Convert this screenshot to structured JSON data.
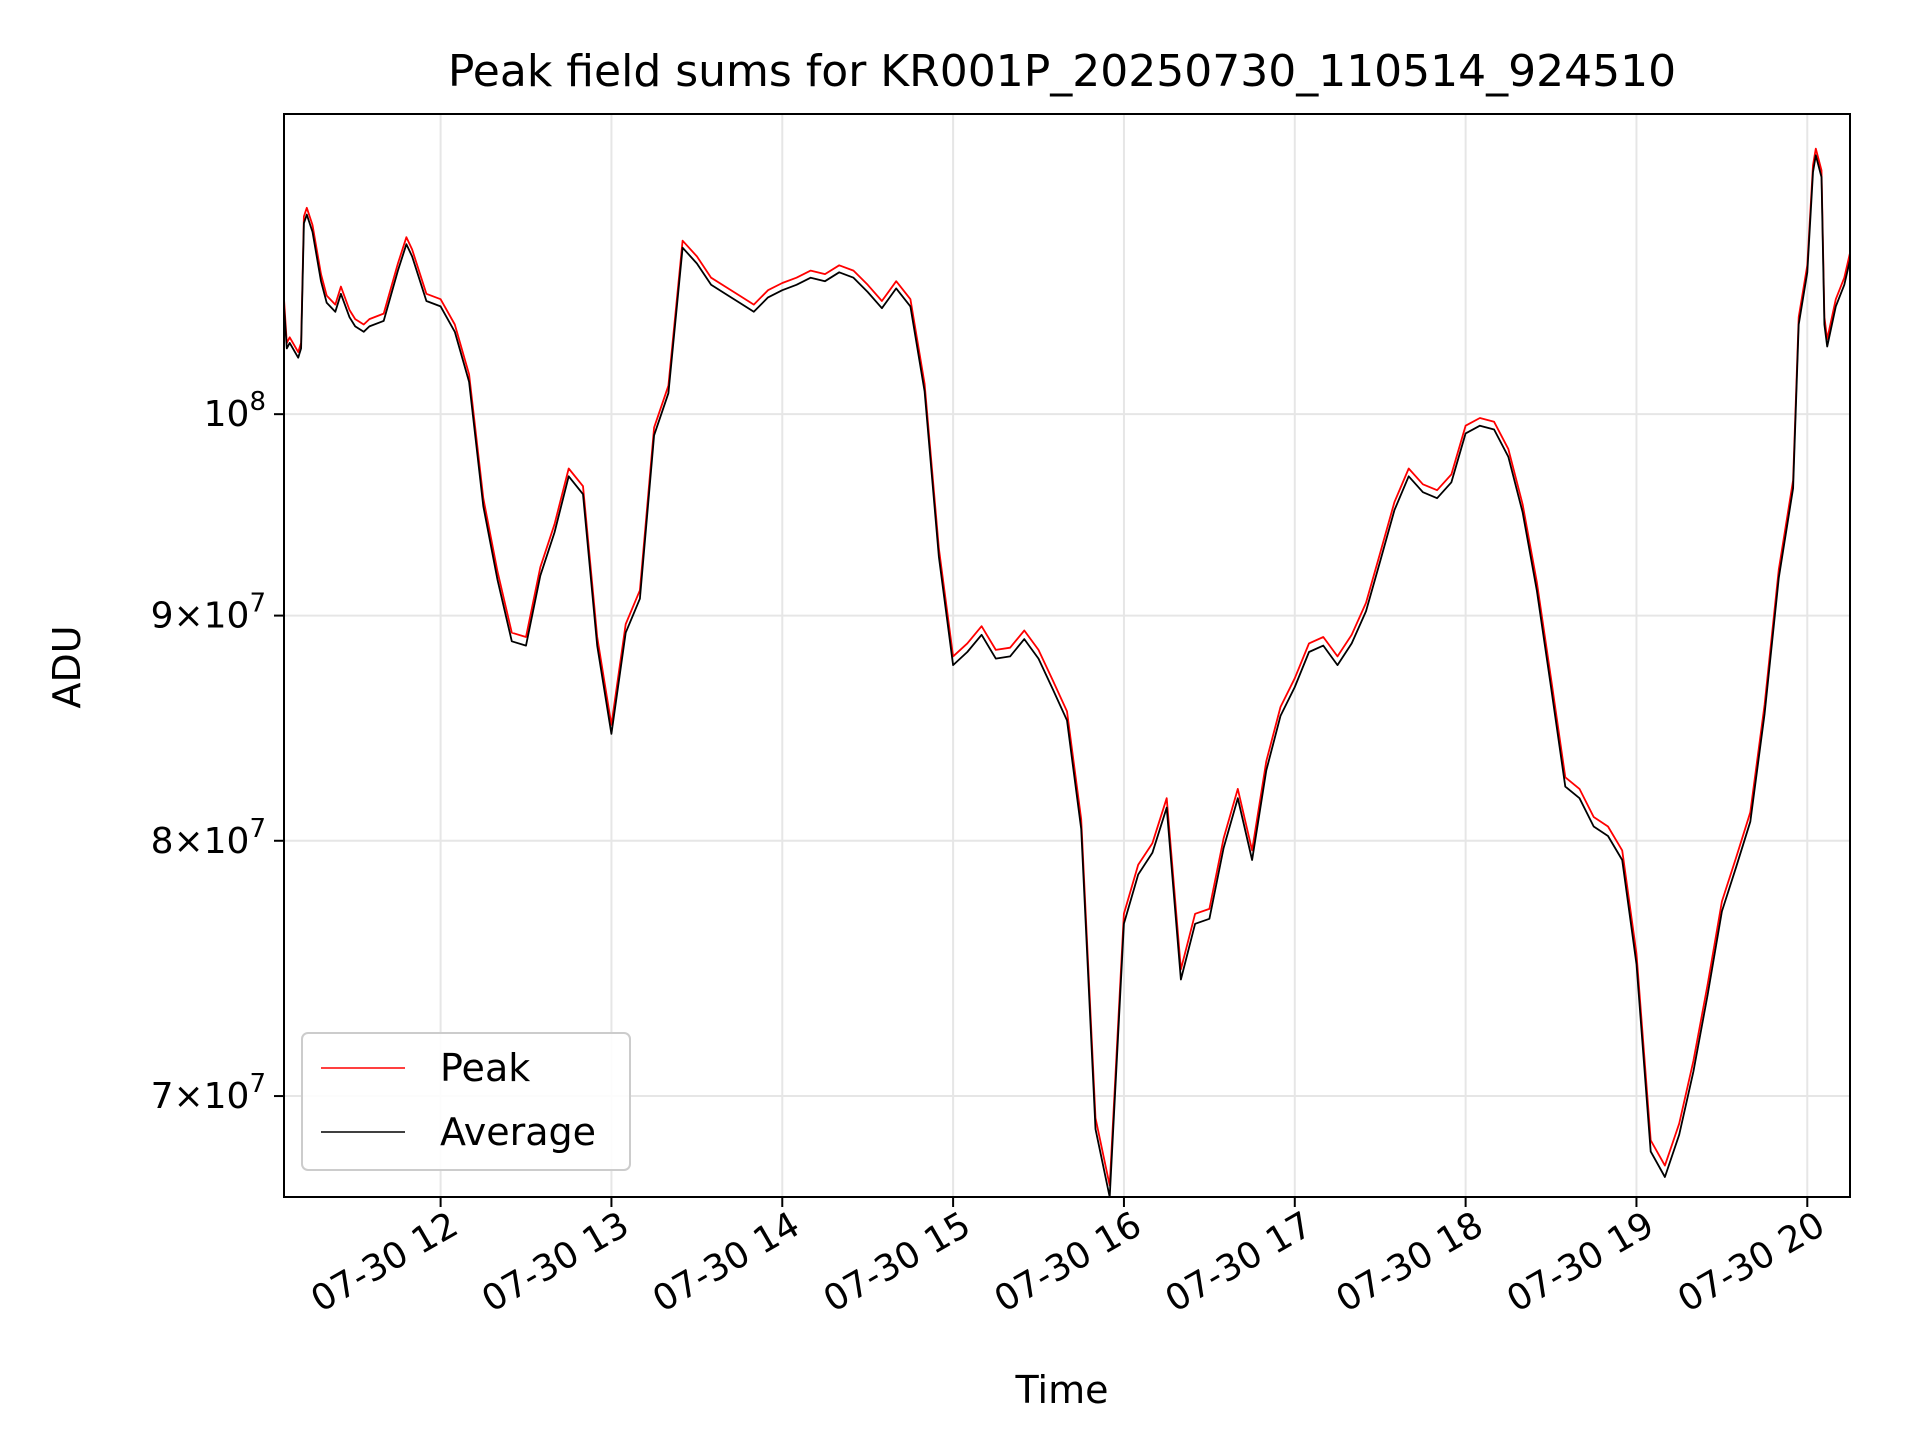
{
  "chart_data": {
    "type": "line",
    "title": "Peak field sums for KR001P_20250730_110514_924510",
    "xlabel": "Time",
    "ylabel": "ADU",
    "scale": {
      "x": "time",
      "y": "log"
    },
    "xlim": [
      "2025-07-30 11:05",
      "2025-07-30 20:15"
    ],
    "ylim": [
      66400000,
      117000000
    ],
    "x_ticks": [
      "2025-07-30 12:00",
      "2025-07-30 13:00",
      "2025-07-30 14:00",
      "2025-07-30 15:00",
      "2025-07-30 16:00",
      "2025-07-30 17:00",
      "2025-07-30 18:00",
      "2025-07-30 19:00",
      "2025-07-30 20:00"
    ],
    "x_tick_labels": [
      "07-30 12",
      "07-30 13",
      "07-30 14",
      "07-30 15",
      "07-30 16",
      "07-30 17",
      "07-30 18",
      "07-30 19",
      "07-30 20"
    ],
    "y_ticks": [
      {
        "value": 70000000,
        "mantissa": "7",
        "exponent": "7"
      },
      {
        "value": 80000000,
        "mantissa": "8",
        "exponent": "7"
      },
      {
        "value": 90000000,
        "mantissa": "9",
        "exponent": "7"
      },
      {
        "value": 100000000,
        "mantissa": "",
        "exponent": "8"
      }
    ],
    "grid": true,
    "legend": {
      "position": "lower-left"
    },
    "series": [
      {
        "name": "Peak",
        "color": "#ff0000"
      },
      {
        "name": "Average",
        "color": "#000000"
      }
    ],
    "x": [
      "2025-07-30 11:05",
      "2025-07-30 11:06",
      "2025-07-30 11:07",
      "2025-07-30 11:10",
      "2025-07-30 11:11",
      "2025-07-30 11:12",
      "2025-07-30 11:13",
      "2025-07-30 11:15",
      "2025-07-30 11:18",
      "2025-07-30 11:20",
      "2025-07-30 11:23",
      "2025-07-30 11:25",
      "2025-07-30 11:28",
      "2025-07-30 11:30",
      "2025-07-30 11:33",
      "2025-07-30 11:35",
      "2025-07-30 11:40",
      "2025-07-30 11:45",
      "2025-07-30 11:48",
      "2025-07-30 11:50",
      "2025-07-30 11:55",
      "2025-07-30 12:00",
      "2025-07-30 12:05",
      "2025-07-30 12:10",
      "2025-07-30 12:15",
      "2025-07-30 12:20",
      "2025-07-30 12:25",
      "2025-07-30 12:30",
      "2025-07-30 12:35",
      "2025-07-30 12:40",
      "2025-07-30 12:45",
      "2025-07-30 12:50",
      "2025-07-30 12:55",
      "2025-07-30 13:00",
      "2025-07-30 13:05",
      "2025-07-30 13:10",
      "2025-07-30 13:15",
      "2025-07-30 13:20",
      "2025-07-30 13:25",
      "2025-07-30 13:30",
      "2025-07-30 13:35",
      "2025-07-30 13:40",
      "2025-07-30 13:45",
      "2025-07-30 13:50",
      "2025-07-30 13:55",
      "2025-07-30 14:00",
      "2025-07-30 14:05",
      "2025-07-30 14:10",
      "2025-07-30 14:15",
      "2025-07-30 14:20",
      "2025-07-30 14:25",
      "2025-07-30 14:30",
      "2025-07-30 14:35",
      "2025-07-30 14:40",
      "2025-07-30 14:45",
      "2025-07-30 14:50",
      "2025-07-30 14:55",
      "2025-07-30 15:00",
      "2025-07-30 15:05",
      "2025-07-30 15:10",
      "2025-07-30 15:15",
      "2025-07-30 15:20",
      "2025-07-30 15:25",
      "2025-07-30 15:30",
      "2025-07-30 15:35",
      "2025-07-30 15:40",
      "2025-07-30 15:45",
      "2025-07-30 15:50",
      "2025-07-30 15:55",
      "2025-07-30 16:00",
      "2025-07-30 16:05",
      "2025-07-30 16:10",
      "2025-07-30 16:15",
      "2025-07-30 16:20",
      "2025-07-30 16:25",
      "2025-07-30 16:30",
      "2025-07-30 16:35",
      "2025-07-30 16:40",
      "2025-07-30 16:45",
      "2025-07-30 16:50",
      "2025-07-30 16:55",
      "2025-07-30 17:00",
      "2025-07-30 17:05",
      "2025-07-30 17:10",
      "2025-07-30 17:15",
      "2025-07-30 17:20",
      "2025-07-30 17:25",
      "2025-07-30 17:30",
      "2025-07-30 17:35",
      "2025-07-30 17:40",
      "2025-07-30 17:45",
      "2025-07-30 17:50",
      "2025-07-30 17:55",
      "2025-07-30 18:00",
      "2025-07-30 18:05",
      "2025-07-30 18:10",
      "2025-07-30 18:15",
      "2025-07-30 18:20",
      "2025-07-30 18:25",
      "2025-07-30 18:30",
      "2025-07-30 18:35",
      "2025-07-30 18:40",
      "2025-07-30 18:45",
      "2025-07-30 18:50",
      "2025-07-30 18:55",
      "2025-07-30 19:00",
      "2025-07-30 19:05",
      "2025-07-30 19:10",
      "2025-07-30 19:15",
      "2025-07-30 19:20",
      "2025-07-30 19:25",
      "2025-07-30 19:30",
      "2025-07-30 19:35",
      "2025-07-30 19:40",
      "2025-07-30 19:45",
      "2025-07-30 19:50",
      "2025-07-30 19:55",
      "2025-07-30 19:57",
      "2025-07-30 20:00",
      "2025-07-30 20:02",
      "2025-07-30 20:03",
      "2025-07-30 20:05",
      "2025-07-30 20:06",
      "2025-07-30 20:07",
      "2025-07-30 20:10",
      "2025-07-30 20:13",
      "2025-07-30 20:15"
    ],
    "average": [
      105800000,
      103500000,
      103800000,
      103000000,
      103500000,
      110500000,
      111000000,
      110000000,
      107200000,
      106000000,
      105500000,
      106500000,
      105200000,
      104700000,
      104400000,
      104700000,
      105000000,
      107800000,
      109300000,
      108600000,
      106100000,
      105800000,
      104400000,
      101700000,
      95300000,
      91700000,
      88800000,
      88600000,
      91900000,
      94000000,
      96800000,
      95900000,
      88600000,
      84600000,
      89200000,
      90800000,
      98900000,
      101100000,
      109100000,
      108200000,
      107000000,
      106500000,
      106000000,
      105500000,
      106300000,
      106700000,
      107000000,
      107400000,
      107200000,
      107700000,
      107400000,
      106600000,
      105700000,
      106800000,
      105800000,
      101200000,
      92800000,
      87700000,
      88300000,
      89100000,
      88000000,
      88100000,
      88900000,
      88000000,
      86600000,
      85200000,
      80500000,
      68800000,
      66400000,
      76600000,
      78600000,
      79500000,
      81400000,
      74400000,
      76600000,
      76800000,
      79700000,
      81800000,
      79200000,
      83000000,
      85400000,
      86700000,
      88300000,
      88600000,
      87700000,
      88700000,
      90200000,
      92600000,
      95100000,
      96800000,
      96000000,
      95700000,
      96500000,
      99000000,
      99400000,
      99200000,
      97800000,
      95000000,
      91200000,
      86700000,
      82300000,
      81800000,
      80600000,
      80200000,
      79200000,
      75000000,
      68000000,
      67100000,
      68600000,
      70900000,
      73800000,
      77100000,
      78900000,
      80800000,
      85500000,
      91800000,
      96200000,
      104800000,
      107700000,
      113500000,
      114500000,
      113200000,
      104800000,
      103600000,
      105800000,
      107000000,
      108400000
    ],
    "peak": [
      106200000,
      103800000,
      104100000,
      103300000,
      103800000,
      110900000,
      111400000,
      110400000,
      107600000,
      106400000,
      105900000,
      106900000,
      105600000,
      105100000,
      104800000,
      105100000,
      105400000,
      108200000,
      109700000,
      109000000,
      106500000,
      106200000,
      104800000,
      102100000,
      95700000,
      92100000,
      89200000,
      89000000,
      92300000,
      94400000,
      97200000,
      96300000,
      89000000,
      85000000,
      89600000,
      91200000,
      99300000,
      101500000,
      109500000,
      108600000,
      107400000,
      106900000,
      106400000,
      105900000,
      106700000,
      107100000,
      107400000,
      107800000,
      107600000,
      108100000,
      107800000,
      107000000,
      106100000,
      107200000,
      106200000,
      101600000,
      93200000,
      88100000,
      88700000,
      89500000,
      88400000,
      88500000,
      89300000,
      88400000,
      87000000,
      85600000,
      80900000,
      69200000,
      66800000,
      77000000,
      79000000,
      79900000,
      81800000,
      74800000,
      77000000,
      77200000,
      80100000,
      82200000,
      79600000,
      83400000,
      85800000,
      87100000,
      88700000,
      89000000,
      88100000,
      89100000,
      90600000,
      93000000,
      95500000,
      97200000,
      96400000,
      96100000,
      96900000,
      99400000,
      99800000,
      99600000,
      98200000,
      95400000,
      91600000,
      87100000,
      82700000,
      82200000,
      81000000,
      80600000,
      79600000,
      75400000,
      68400000,
      67500000,
      69000000,
      71300000,
      74200000,
      77500000,
      79300000,
      81200000,
      85900000,
      92200000,
      96600000,
      105200000,
      108100000,
      113900000,
      114900000,
      113600000,
      105200000,
      104000000,
      106200000,
      107400000,
      108800000
    ]
  }
}
